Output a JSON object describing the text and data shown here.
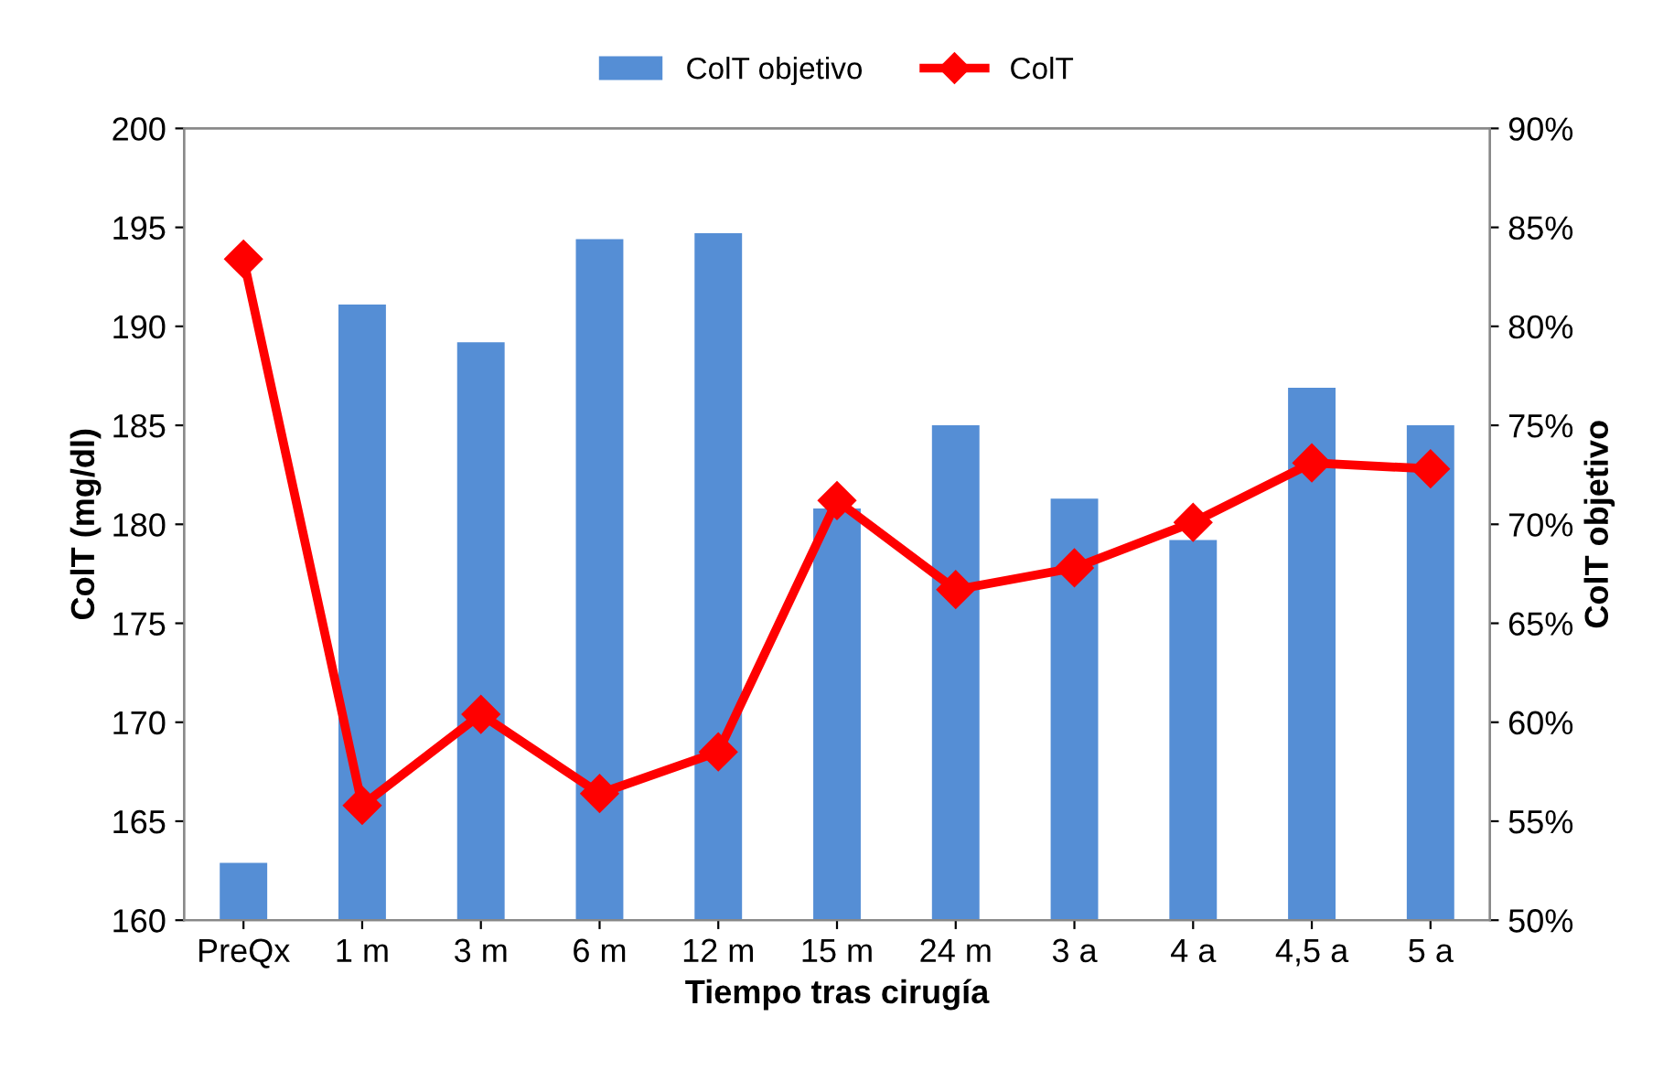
{
  "chart_data": {
    "type": "bar",
    "xlabel": "Tiempo tras cirugía",
    "ylabel": "ColT (mg/dl)",
    "y2label": "ColT objetivo",
    "categories": [
      "PreQx",
      "1 m",
      "3 m",
      "6 m",
      "12 m",
      "15 m",
      "24 m",
      "3 a",
      "4 a",
      "4,5 a",
      "5 a"
    ],
    "series": [
      {
        "name": "ColT objetivo",
        "axis": "y2",
        "color": "#558ed5",
        "values": [
          52.9,
          81.1,
          79.2,
          84.4,
          84.7,
          70.8,
          75.0,
          71.3,
          69.2,
          76.9,
          75.0
        ]
      },
      {
        "name": "ColT",
        "type": "line",
        "color": "#ff0000",
        "marker": "diamond",
        "values": [
          193.4,
          165.8,
          170.4,
          166.4,
          168.5,
          181.2,
          176.7,
          177.8,
          180.1,
          183.1,
          182.8
        ]
      }
    ],
    "ylim": [
      160,
      200
    ],
    "yticks": [
      160,
      165,
      170,
      175,
      180,
      185,
      190,
      195,
      200
    ],
    "y2lim": [
      50,
      90
    ],
    "y2ticks": [
      {
        "value": 50,
        "label": "50%"
      },
      {
        "value": 55,
        "label": "55%"
      },
      {
        "value": 60,
        "label": "60%"
      },
      {
        "value": 65,
        "label": "65%"
      },
      {
        "value": 70,
        "label": "70%"
      },
      {
        "value": 75,
        "label": "75%"
      },
      {
        "value": 80,
        "label": "80%"
      },
      {
        "value": 85,
        "label": "85%"
      },
      {
        "value": 90,
        "label": "90%"
      }
    ],
    "grid": false,
    "legend": "top"
  }
}
